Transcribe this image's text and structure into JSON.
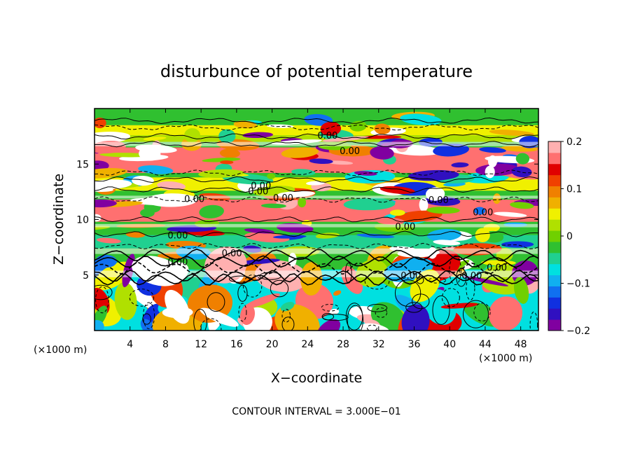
{
  "chart_data": {
    "type": "heatmap",
    "title": "disturbunce of potential temperature",
    "xlabel": "X−coordinate",
    "ylabel": "Z−coordinate",
    "x_unit_label": "(×1000 m)",
    "z_unit_label": "(×1000 m)",
    "footer": "CONTOUR INTERVAL = 3.000E−01",
    "xlim": [
      0,
      50
    ],
    "ylim": [
      0,
      20
    ],
    "x_ticks": [
      4,
      8,
      12,
      16,
      20,
      24,
      28,
      32,
      36,
      40,
      44,
      48
    ],
    "y_ticks": [
      5,
      10,
      15
    ],
    "colorbar": {
      "range": [
        -0.2,
        0.2
      ],
      "ticks": [
        0.2,
        0.1,
        0,
        -0.1,
        -0.2
      ],
      "tick_labels": [
        "0.2",
        "0.1",
        "0",
        "−0.1",
        "−0.2"
      ],
      "colors": [
        "#8000a0",
        "#3010c0",
        "#1030e0",
        "#1070f0",
        "#10b0f0",
        "#00e0e0",
        "#20d090",
        "#30c030",
        "#70d000",
        "#b0e000",
        "#f0f000",
        "#f0b000",
        "#f08000",
        "#f04000",
        "#e00000",
        "#ff7070",
        "#ffb0b0"
      ]
    },
    "contour_label": "0.00",
    "contour_label_positions": [
      [
        33.6,
        17.6
      ],
      [
        36.8,
        16.2
      ],
      [
        14.4,
        11.9
      ],
      [
        12.0,
        8.6
      ],
      [
        24.0,
        13.1
      ],
      [
        23.6,
        12.6
      ],
      [
        27.2,
        12.0
      ],
      [
        49.6,
        11.8
      ],
      [
        56.0,
        10.7
      ],
      [
        44.8,
        9.4
      ],
      [
        19.8,
        7.0
      ],
      [
        12.0,
        6.2
      ],
      [
        58.0,
        5.7
      ],
      [
        45.6,
        5.0
      ],
      [
        54.4,
        5.0
      ]
    ],
    "bands": [
      {
        "z0": 17.6,
        "z1": 18.5,
        "value": 0.05
      },
      {
        "z0": 17.0,
        "z1": 17.6,
        "value": 0.03
      },
      {
        "z0": 14.2,
        "z1": 16.5,
        "value": 0.16
      },
      {
        "z0": 12.6,
        "z1": 13.8,
        "value": 0.04
      },
      {
        "z0": 9.8,
        "z1": 11.8,
        "value": 0.17
      },
      {
        "z0": 7.4,
        "z1": 8.6,
        "value": -0.05
      },
      {
        "z0": 0.0,
        "z1": 5.5,
        "value": -0.07
      }
    ]
  }
}
